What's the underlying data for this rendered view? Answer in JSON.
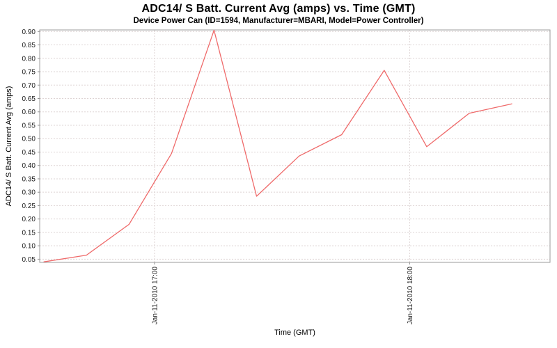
{
  "chart_data": {
    "type": "line",
    "title": "ADC14/ S Batt. Current Avg (amps) vs. Time (GMT)",
    "subtitle": "Device Power Can (ID=1594, Manufacturer=MBARI, Model=Power Controller)",
    "xlabel": "Time (GMT)",
    "ylabel": "ADC14/ S Batt. Current Avg (amps)",
    "legend": "none",
    "grid": true,
    "date": "Jan-11-2010",
    "xlim": [
      "16:33",
      "18:33"
    ],
    "ylim": [
      0.038,
      0.906
    ],
    "xticks": [
      {
        "label": "Jan-11-2010 17:00",
        "time": "17:00"
      },
      {
        "label": "Jan-11-2010 18:00",
        "time": "18:00"
      }
    ],
    "yticks": [
      "0.05",
      "0.10",
      "0.15",
      "0.20",
      "0.25",
      "0.30",
      "0.35",
      "0.40",
      "0.45",
      "0.50",
      "0.55",
      "0.60",
      "0.65",
      "0.70",
      "0.75",
      "0.80",
      "0.85",
      "0.90"
    ],
    "series": [
      {
        "name": "ADC14/ S Batt. Current Avg (amps)",
        "points": [
          {
            "time": "16:34",
            "value": 0.04
          },
          {
            "time": "16:44",
            "value": 0.065
          },
          {
            "time": "16:54",
            "value": 0.18
          },
          {
            "time": "17:04",
            "value": 0.445
          },
          {
            "time": "17:14",
            "value": 0.905
          },
          {
            "time": "17:24",
            "value": 0.285
          },
          {
            "time": "17:34",
            "value": 0.435
          },
          {
            "time": "17:44",
            "value": 0.515
          },
          {
            "time": "17:54",
            "value": 0.755
          },
          {
            "time": "18:04",
            "value": 0.47
          },
          {
            "time": "18:14",
            "value": 0.595
          },
          {
            "time": "18:24",
            "value": 0.63
          }
        ]
      }
    ],
    "colors": {
      "line": "#ef6a6a",
      "grid": "#ded4d4",
      "plot_border": "#9b9b9b",
      "tick_mark": "#8a8a8a",
      "tick_text": "#1a1a1a",
      "background": "#ffffff"
    }
  }
}
